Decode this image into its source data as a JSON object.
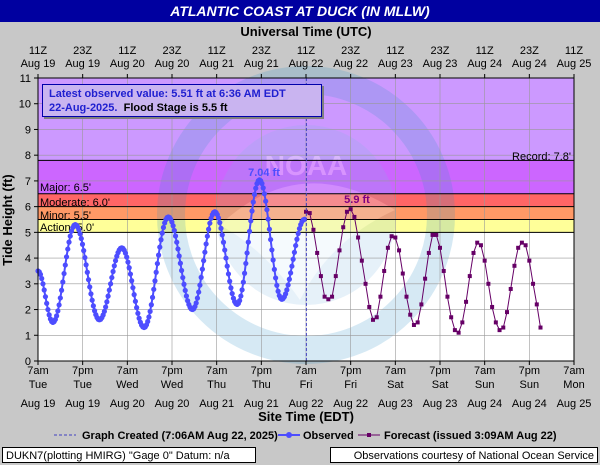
{
  "title": "ATLANTIC COAST AT DUCK (IN MLLW)",
  "top_axis_title": "Universal Time (UTC)",
  "bottom_axis_title": "Site Time (EDT)",
  "y_axis_title": "Tide Height (ft)",
  "top_ticks": [
    {
      "l1": "11Z",
      "l2": "Aug 19"
    },
    {
      "l1": "23Z",
      "l2": "Aug 19"
    },
    {
      "l1": "11Z",
      "l2": "Aug 20"
    },
    {
      "l1": "23Z",
      "l2": "Aug 20"
    },
    {
      "l1": "11Z",
      "l2": "Aug 21"
    },
    {
      "l1": "23Z",
      "l2": "Aug 21"
    },
    {
      "l1": "11Z",
      "l2": "Aug 22"
    },
    {
      "l1": "23Z",
      "l2": "Aug 22"
    },
    {
      "l1": "11Z",
      "l2": "Aug 23"
    },
    {
      "l1": "23Z",
      "l2": "Aug 23"
    },
    {
      "l1": "11Z",
      "l2": "Aug 24"
    },
    {
      "l1": "23Z",
      "l2": "Aug 24"
    },
    {
      "l1": "11Z",
      "l2": "Aug 25"
    }
  ],
  "bottom_ticks": [
    {
      "l1": "7am",
      "l2": "Tue",
      "l3": "Aug 19"
    },
    {
      "l1": "7pm",
      "l2": "Tue",
      "l3": "Aug 19"
    },
    {
      "l1": "7am",
      "l2": "Wed",
      "l3": "Aug 20"
    },
    {
      "l1": "7pm",
      "l2": "Wed",
      "l3": "Aug 20"
    },
    {
      "l1": "7am",
      "l2": "Thu",
      "l3": "Aug 21"
    },
    {
      "l1": "7pm",
      "l2": "Thu",
      "l3": "Aug 21"
    },
    {
      "l1": "7am",
      "l2": "Fri",
      "l3": "Aug 22"
    },
    {
      "l1": "7pm",
      "l2": "Fri",
      "l3": "Aug 22"
    },
    {
      "l1": "7am",
      "l2": "Sat",
      "l3": "Aug 23"
    },
    {
      "l1": "7pm",
      "l2": "Sat",
      "l3": "Aug 23"
    },
    {
      "l1": "7am",
      "l2": "Sun",
      "l3": "Aug 24"
    },
    {
      "l1": "7pm",
      "l2": "Sun",
      "l3": "Aug 24"
    },
    {
      "l1": "7am",
      "l2": "Mon",
      "l3": "Aug 25"
    }
  ],
  "y_ticks": [
    "0",
    "1",
    "2",
    "3",
    "4",
    "5",
    "6",
    "7",
    "8",
    "9",
    "10",
    "11"
  ],
  "info_box": {
    "line1": "Latest observed value: 5.51 ft at 6:36 AM EDT",
    "line2a": "22-Aug-2025.",
    "line2b": "Flood Stage is 5.5 ft"
  },
  "stage_labels": {
    "record": "Record: 7.8'",
    "major": "Major: 6.5'",
    "moderate": "Moderate: 6.0'",
    "minor": "Minor: 5.5'",
    "action": "Action: 5.0'"
  },
  "peak_labels": {
    "observed": "7.04 ft",
    "forecast": "5.9 ft"
  },
  "legend": {
    "created": "Graph Created (7:06AM Aug 22, 2025)",
    "observed": "Observed",
    "forecast": "Forecast (issued 3:09AM Aug 22)"
  },
  "footer": {
    "left": "DUKN7(plotting HMIRG) \"Gage 0\" Datum: n/a",
    "right": "Observations courtesy of National Ocean Service"
  },
  "watermark": [
    "NOAA",
    "NATIONAL OCEANIC AND ATMOSPHERIC ADMINISTRATION",
    "U.S. DEPARTMENT OF COMMERCE"
  ],
  "colors": {
    "title_bg": "#0000a0",
    "record_zone": "#cc99ff",
    "major_zone": "#cc66ff",
    "moderate_zone": "#ff6666",
    "minor_zone": "#ff9966",
    "action_zone": "#ffff99",
    "normal_zone": "#ffffff",
    "observed": "#4d4dff",
    "forecast": "#660066"
  },
  "chart_data": {
    "type": "line",
    "x_unit": "hours since 7am Tue Aug 19 (EDT)",
    "xlim": [
      0,
      144
    ],
    "ylim": [
      0,
      11
    ],
    "grid": true,
    "thresholds": {
      "action": 5.0,
      "minor": 5.5,
      "moderate": 6.0,
      "major": 6.5,
      "record": 7.8
    },
    "graph_created_x": 72.1,
    "observed_extrema": [
      {
        "x": 0,
        "y": 3.5
      },
      {
        "x": 4,
        "y": 1.5
      },
      {
        "x": 10,
        "y": 5.3
      },
      {
        "x": 16.5,
        "y": 1.6
      },
      {
        "x": 22.5,
        "y": 4.4
      },
      {
        "x": 28.5,
        "y": 1.3
      },
      {
        "x": 35,
        "y": 5.6
      },
      {
        "x": 41.5,
        "y": 2.0
      },
      {
        "x": 47.5,
        "y": 5.8
      },
      {
        "x": 53.5,
        "y": 2.2
      },
      {
        "x": 59.5,
        "y": 7.04
      },
      {
        "x": 65.5,
        "y": 2.4
      },
      {
        "x": 71.6,
        "y": 5.51
      }
    ],
    "forecast_points": [
      [
        72.0,
        5.8
      ],
      [
        73.0,
        5.75
      ],
      [
        74.0,
        5.1
      ],
      [
        75.0,
        4.2
      ],
      [
        76.0,
        3.3
      ],
      [
        77.0,
        2.5
      ],
      [
        78.0,
        2.4
      ],
      [
        79.0,
        2.5
      ],
      [
        80.0,
        3.3
      ],
      [
        81.0,
        4.3
      ],
      [
        82.0,
        5.2
      ],
      [
        83.0,
        5.8
      ],
      [
        84.0,
        5.9
      ],
      [
        85.0,
        5.6
      ],
      [
        86.0,
        4.8
      ],
      [
        87.0,
        3.9
      ],
      [
        88.0,
        3.0
      ],
      [
        89.0,
        2.1
      ],
      [
        90.0,
        1.6
      ],
      [
        91.0,
        1.7
      ],
      [
        92.0,
        2.5
      ],
      [
        93.0,
        3.5
      ],
      [
        94.0,
        4.4
      ],
      [
        95.0,
        4.85
      ],
      [
        96.0,
        4.8
      ],
      [
        97.0,
        4.3
      ],
      [
        98.0,
        3.4
      ],
      [
        99.0,
        2.5
      ],
      [
        100.0,
        1.8
      ],
      [
        101.0,
        1.4
      ],
      [
        102.0,
        1.5
      ],
      [
        103.0,
        2.2
      ],
      [
        104.0,
        3.2
      ],
      [
        105.0,
        4.2
      ],
      [
        106.0,
        4.9
      ],
      [
        107.0,
        4.9
      ],
      [
        108.0,
        4.4
      ],
      [
        109.0,
        3.5
      ],
      [
        110.0,
        2.5
      ],
      [
        111.0,
        1.7
      ],
      [
        112.0,
        1.2
      ],
      [
        113.0,
        1.1
      ],
      [
        114.0,
        1.5
      ],
      [
        115.0,
        2.3
      ],
      [
        116.0,
        3.3
      ],
      [
        117.0,
        4.2
      ],
      [
        118.0,
        4.6
      ],
      [
        119.0,
        4.5
      ],
      [
        120.0,
        3.9
      ],
      [
        121.0,
        3.0
      ],
      [
        122.0,
        2.1
      ],
      [
        123.0,
        1.5
      ],
      [
        124.0,
        1.2
      ],
      [
        125.0,
        1.3
      ],
      [
        126.0,
        1.9
      ],
      [
        127.0,
        2.8
      ],
      [
        128.0,
        3.7
      ],
      [
        129.0,
        4.4
      ],
      [
        130.0,
        4.6
      ],
      [
        131.0,
        4.5
      ],
      [
        132.0,
        3.9
      ],
      [
        133.0,
        3.0
      ],
      [
        134.0,
        2.2
      ],
      [
        135.0,
        1.3
      ]
    ]
  }
}
